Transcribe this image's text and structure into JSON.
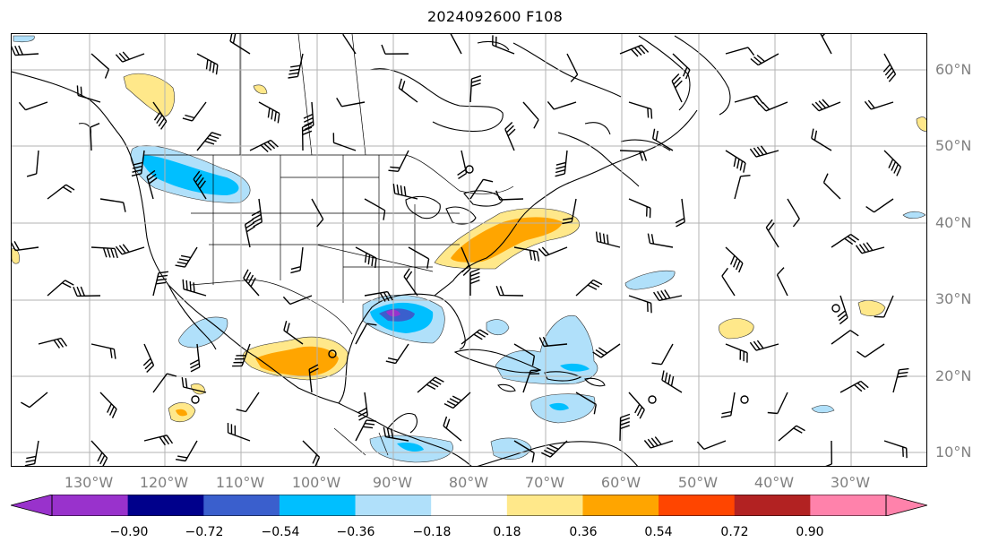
{
  "title": "2024092600 F108",
  "lat_labels": [
    "60°N",
    "50°N",
    "40°N",
    "30°N",
    "20°N",
    "10°N"
  ],
  "lon_labels": [
    "130°W",
    "120°W",
    "110°W",
    "100°W",
    "90°W",
    "80°W",
    "70°W",
    "60°W",
    "50°W",
    "40°W",
    "30°W"
  ],
  "colorbar": {
    "ticks": [
      "−0.90",
      "−0.72",
      "−0.54",
      "−0.36",
      "−0.18",
      "0.18",
      "0.36",
      "0.54",
      "0.72",
      "0.90"
    ],
    "colors": {
      "under": "#9932cc",
      "bins": [
        "#9932cc",
        "#00008b",
        "#3a5fcd",
        "#00bfff",
        "#b0e0fa",
        "#ffffff",
        "#ffe88a",
        "#ffa500",
        "#ff4500",
        "#b22222"
      ],
      "over": "#ff82ab"
    }
  },
  "colors": {
    "grid": "#b3b3b3",
    "axis_label": "#808080"
  }
}
